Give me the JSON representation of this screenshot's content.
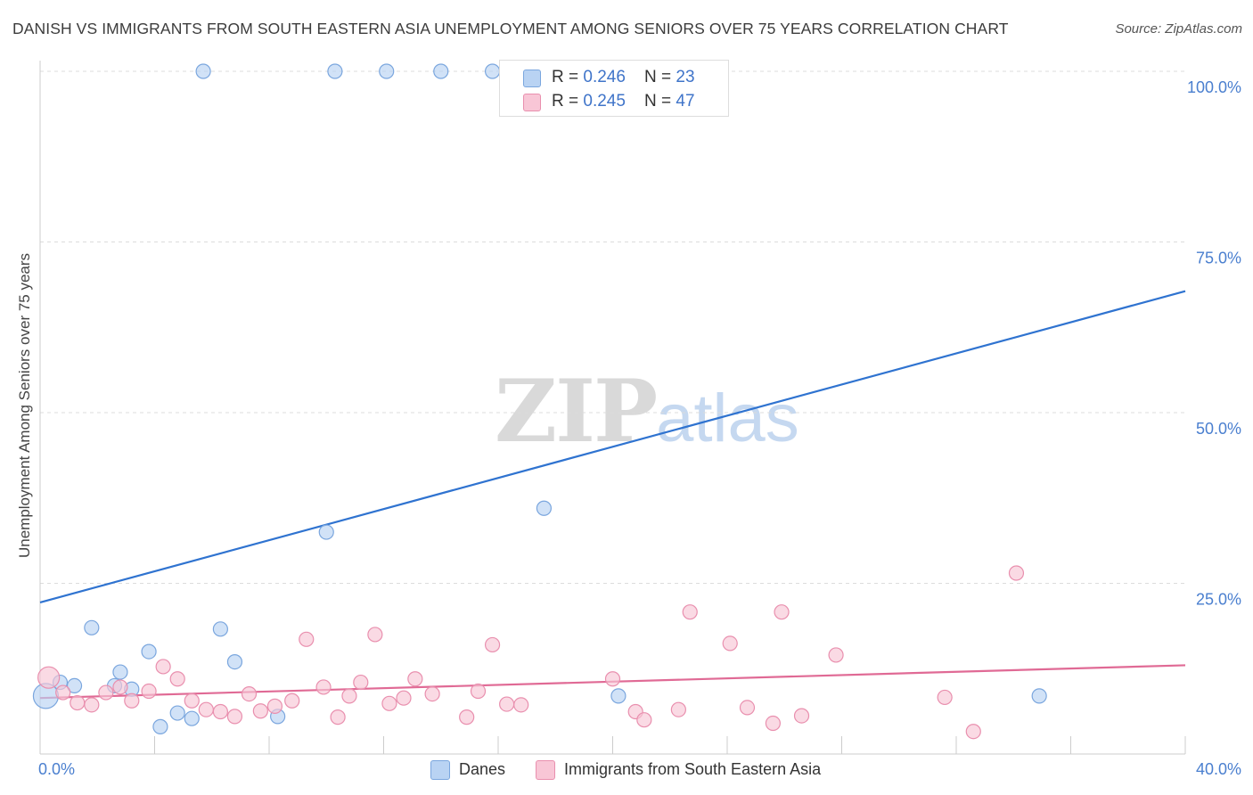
{
  "title": "DANISH VS IMMIGRANTS FROM SOUTH EASTERN ASIA UNEMPLOYMENT AMONG SENIORS OVER 75 YEARS CORRELATION CHART",
  "source": "Source: ZipAtlas.com",
  "watermark": {
    "zip": "ZIP",
    "atlas": "atlas"
  },
  "colors": {
    "danes_fill": "#b9d3f3",
    "danes_stroke": "#7aa6de",
    "danes_line": "#2f73d0",
    "asia_fill": "#f8c6d6",
    "asia_stroke": "#e98fae",
    "asia_line": "#e06a95",
    "grid": "#dcdcdc",
    "axis_text": "#4a7fcf"
  },
  "legend": {
    "danes": {
      "r_label": "R = ",
      "r_value": "0.246",
      "n_label": "N = ",
      "n_value": "23"
    },
    "asia": {
      "r_label": "R = ",
      "r_value": "0.245",
      "n_label": "N = ",
      "n_value": "47"
    }
  },
  "chart_data": {
    "type": "scatter",
    "title": "DANISH VS IMMIGRANTS FROM SOUTH EASTERN ASIA UNEMPLOYMENT AMONG SENIORS OVER 75 YEARS CORRELATION CHART",
    "xlabel": "",
    "ylabel": "Unemployment Among Seniors over 75 years",
    "xlim": [
      0,
      40
    ],
    "ylim": [
      0,
      100
    ],
    "x_tick_labels": [
      "0.0%",
      "40.0%"
    ],
    "y_tick_labels": [
      "25.0%",
      "50.0%",
      "75.0%",
      "100.0%"
    ],
    "y_tick_values": [
      25,
      50,
      75,
      100
    ],
    "x_grid_values": [
      0,
      4,
      8,
      12,
      16,
      20,
      24,
      28,
      32,
      36,
      40
    ],
    "grid": true,
    "legend_position": "top-center",
    "series": [
      {
        "name": "Danes",
        "points": [
          [
            0.2,
            8.5,
            14
          ],
          [
            0.7,
            10.5,
            8
          ],
          [
            1.2,
            10.0,
            8
          ],
          [
            1.8,
            18.5,
            8
          ],
          [
            2.6,
            10.0,
            8
          ],
          [
            2.8,
            12.0,
            8
          ],
          [
            3.2,
            9.5,
            8
          ],
          [
            3.8,
            15.0,
            8
          ],
          [
            4.2,
            4.0,
            8
          ],
          [
            4.8,
            6.0,
            8
          ],
          [
            5.3,
            5.2,
            8
          ],
          [
            5.7,
            100,
            8
          ],
          [
            6.3,
            18.3,
            8
          ],
          [
            6.8,
            13.5,
            8
          ],
          [
            8.3,
            5.5,
            8
          ],
          [
            10.0,
            32.5,
            8
          ],
          [
            10.3,
            100,
            8
          ],
          [
            12.1,
            100,
            8
          ],
          [
            14.0,
            100,
            8
          ],
          [
            15.8,
            100,
            8
          ],
          [
            17.6,
            36.0,
            8
          ],
          [
            20.2,
            8.5,
            8
          ],
          [
            34.9,
            8.5,
            8
          ]
        ],
        "trend": {
          "x0": 0,
          "y0": 22.2,
          "x1": 40,
          "y1": 67.8
        }
      },
      {
        "name": "Immigrants from South Eastern Asia",
        "points": [
          [
            0.3,
            11.2,
            12
          ],
          [
            0.8,
            9.0,
            8
          ],
          [
            1.3,
            7.5,
            8
          ],
          [
            1.8,
            7.2,
            8
          ],
          [
            2.3,
            9.0,
            8
          ],
          [
            2.8,
            9.8,
            8
          ],
          [
            3.2,
            7.8,
            8
          ],
          [
            3.8,
            9.2,
            8
          ],
          [
            4.3,
            12.8,
            8
          ],
          [
            4.8,
            11.0,
            8
          ],
          [
            5.3,
            7.8,
            8
          ],
          [
            5.8,
            6.5,
            8
          ],
          [
            6.3,
            6.2,
            8
          ],
          [
            6.8,
            5.5,
            8
          ],
          [
            7.3,
            8.8,
            8
          ],
          [
            7.7,
            6.3,
            8
          ],
          [
            8.2,
            7.0,
            8
          ],
          [
            8.8,
            7.8,
            8
          ],
          [
            9.3,
            16.8,
            8
          ],
          [
            9.9,
            9.8,
            8
          ],
          [
            10.4,
            5.4,
            8
          ],
          [
            10.8,
            8.5,
            8
          ],
          [
            11.2,
            10.5,
            8
          ],
          [
            11.7,
            17.5,
            8
          ],
          [
            12.2,
            7.4,
            8
          ],
          [
            12.7,
            8.2,
            8
          ],
          [
            13.1,
            11.0,
            8
          ],
          [
            13.7,
            8.8,
            8
          ],
          [
            14.9,
            5.4,
            8
          ],
          [
            15.3,
            9.2,
            8
          ],
          [
            15.8,
            16.0,
            8
          ],
          [
            16.3,
            7.3,
            8
          ],
          [
            16.8,
            7.2,
            8
          ],
          [
            20.0,
            11.0,
            8
          ],
          [
            20.8,
            6.2,
            8
          ],
          [
            21.1,
            5.0,
            8
          ],
          [
            22.3,
            6.5,
            8
          ],
          [
            22.7,
            20.8,
            8
          ],
          [
            24.1,
            16.2,
            8
          ],
          [
            24.7,
            6.8,
            8
          ],
          [
            25.6,
            4.5,
            8
          ],
          [
            25.9,
            20.8,
            8
          ],
          [
            26.6,
            5.6,
            8
          ],
          [
            27.8,
            14.5,
            8
          ],
          [
            31.6,
            8.3,
            8
          ],
          [
            32.6,
            3.3,
            8
          ],
          [
            34.1,
            26.5,
            8
          ]
        ],
        "trend": {
          "x0": 0,
          "y0": 8.2,
          "x1": 40,
          "y1": 13.0
        }
      }
    ]
  },
  "bottom_legend": [
    {
      "label": "Danes"
    },
    {
      "label": "Immigrants from South Eastern Asia"
    }
  ]
}
